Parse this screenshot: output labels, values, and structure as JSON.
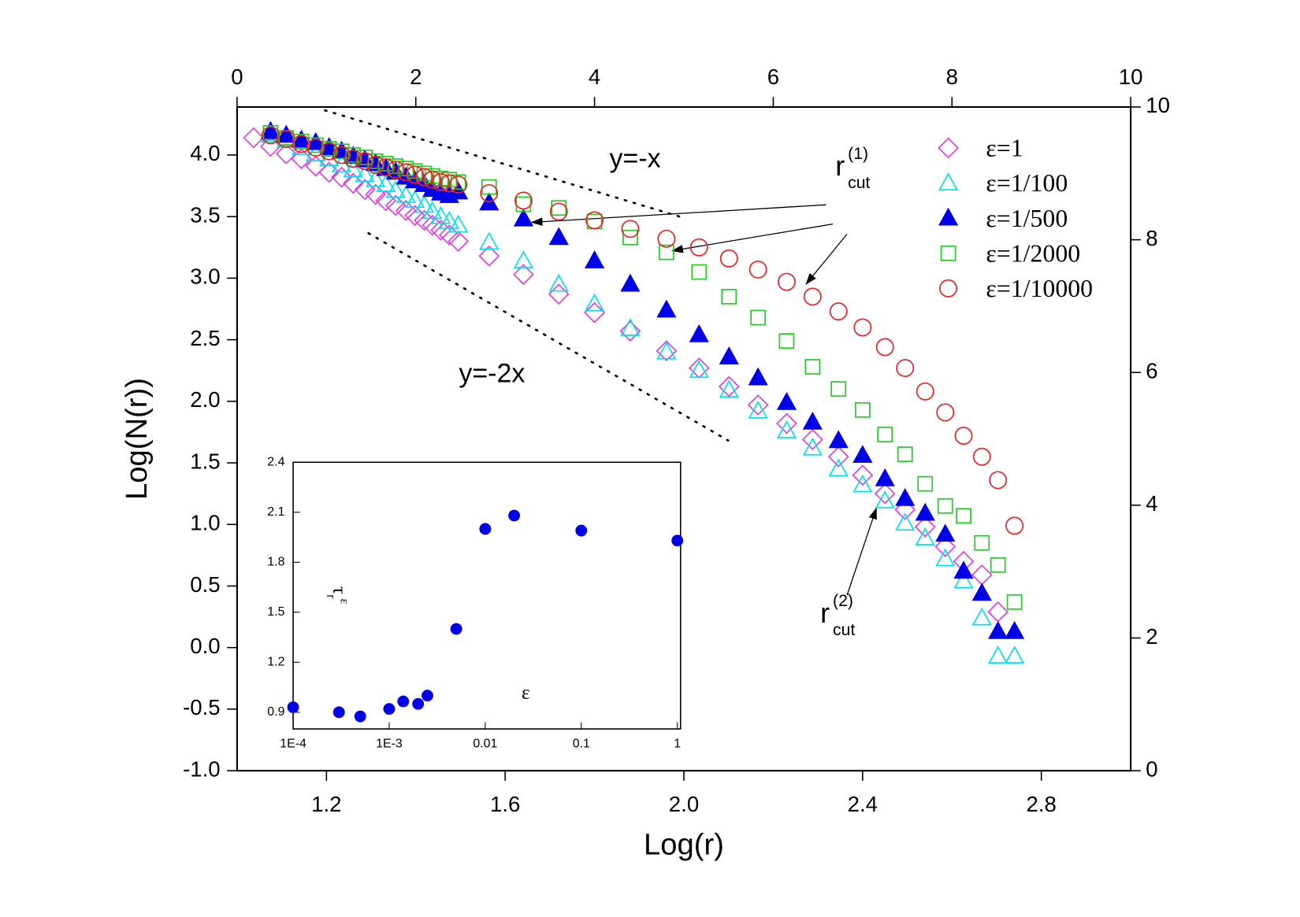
{
  "chart_data": [
    {
      "type": "scatter",
      "xlabel": "Log(r)",
      "ylabel": "Log(N(r))",
      "xlim": [
        1.0,
        3.0
      ],
      "xticks": [
        1.2,
        1.6,
        {
          "value": 2,
          "label": "2.0"
        },
        2.4,
        2.8
      ],
      "ylim": [
        -1.0,
        4.39
      ],
      "yticks": [
        {
          "value": -1,
          "label": "-1.0"
        },
        -0.5,
        {
          "value": 0,
          "label": "0.0"
        },
        0.5,
        {
          "value": 1,
          "label": "1.0"
        },
        1.5,
        {
          "value": 2,
          "label": "2.0"
        },
        2.5,
        {
          "value": 3,
          "label": "3.0"
        },
        3.5,
        {
          "value": 4,
          "label": "4.0"
        }
      ],
      "x2lim": [
        0,
        10
      ],
      "x2ticks": [
        0,
        2,
        4,
        6,
        8,
        10
      ],
      "y2lim": [
        0,
        10
      ],
      "y2ticks": [
        0,
        2,
        4,
        6,
        8,
        10
      ],
      "legend": "upper right",
      "x": [
        1.037,
        1.075,
        1.11,
        1.144,
        1.176,
        1.206,
        1.234,
        1.26,
        1.286,
        1.31,
        1.333,
        1.355,
        1.378,
        1.398,
        1.419,
        1.437,
        1.456,
        1.475,
        1.495,
        1.564,
        1.641,
        1.72,
        1.8,
        1.88,
        1.961,
        2.034,
        2.101,
        2.166,
        2.23,
        2.288,
        2.346,
        2.4,
        2.45,
        2.495,
        2.54,
        2.585,
        2.626,
        2.667,
        2.703,
        2.74
      ],
      "series": [
        {
          "name": "ε=1",
          "marker": "diamond",
          "filled": false,
          "color": "#e040e0",
          "values": [
            4.14,
            4.07,
            4.01,
            3.97,
            3.91,
            3.86,
            3.82,
            3.77,
            3.72,
            3.68,
            3.63,
            3.59,
            3.55,
            3.51,
            3.47,
            3.43,
            3.39,
            3.35,
            3.3,
            3.18,
            3.03,
            2.87,
            2.72,
            2.57,
            2.41,
            2.27,
            2.12,
            1.97,
            1.82,
            1.69,
            1.55,
            1.4,
            1.25,
            1.12,
            0.98,
            0.82,
            0.7,
            0.59,
            0.29,
            null
          ]
        },
        {
          "name": "ε=1/100",
          "marker": "triangle",
          "filled": false,
          "color": "#00e0ee",
          "values": [
            null,
            4.16,
            4.12,
            4.06,
            4.01,
            3.97,
            3.92,
            3.88,
            3.84,
            3.8,
            3.76,
            3.71,
            3.67,
            3.63,
            3.59,
            3.54,
            3.5,
            3.46,
            3.43,
            3.29,
            3.14,
            2.95,
            2.79,
            2.59,
            2.4,
            2.25,
            2.09,
            1.92,
            1.76,
            1.62,
            1.45,
            1.32,
            1.19,
            1.01,
            0.89,
            0.72,
            0.54,
            0.24,
            -0.07,
            -0.07
          ]
        },
        {
          "name": "ε=1/500",
          "marker": "triangle",
          "filled": true,
          "color": "#0000e8",
          "values": [
            null,
            4.19,
            4.16,
            4.12,
            4.1,
            4.06,
            4.03,
            3.99,
            3.96,
            3.93,
            3.89,
            3.86,
            3.82,
            3.79,
            3.76,
            3.72,
            3.69,
            3.67,
            3.7,
            3.61,
            3.48,
            3.33,
            3.14,
            2.95,
            2.74,
            2.54,
            2.36,
            2.19,
            1.99,
            1.83,
            1.68,
            1.56,
            1.37,
            1.21,
            1.09,
            0.92,
            0.62,
            0.44,
            0.13,
            0.13
          ]
        },
        {
          "name": "ε=1/2000",
          "marker": "square",
          "filled": false,
          "color": "#22cc22",
          "values": [
            null,
            4.18,
            4.14,
            4.11,
            4.08,
            4.05,
            4.03,
            4.0,
            3.98,
            3.95,
            3.93,
            3.91,
            3.89,
            3.87,
            3.85,
            3.83,
            3.81,
            3.8,
            3.78,
            3.74,
            3.6,
            3.57,
            3.46,
            3.33,
            3.21,
            3.05,
            2.85,
            2.68,
            2.49,
            2.28,
            2.1,
            1.93,
            1.73,
            1.57,
            1.33,
            1.15,
            1.07,
            0.85,
            0.67,
            0.37
          ]
        },
        {
          "name": "ε=1/10000",
          "marker": "circle",
          "filled": false,
          "color": "#ee2222",
          "values": [
            null,
            4.16,
            4.13,
            4.09,
            4.06,
            4.03,
            4.0,
            3.97,
            3.95,
            3.92,
            3.9,
            3.88,
            3.86,
            3.84,
            3.82,
            3.8,
            3.78,
            3.77,
            3.76,
            3.69,
            3.63,
            3.54,
            3.47,
            3.4,
            3.32,
            3.25,
            3.16,
            3.07,
            2.97,
            2.85,
            2.73,
            2.6,
            2.44,
            2.27,
            2.08,
            1.91,
            1.72,
            1.55,
            1.36,
            0.99
          ]
        }
      ],
      "annotations": [
        {
          "text": "y=-x"
        },
        {
          "text": "y=-2x"
        },
        {
          "base": "r",
          "sub": "cut",
          "sup": "(1)"
        },
        {
          "base": "r",
          "sub": "cut",
          "sup": "(2)"
        }
      ]
    },
    {
      "type": "scatter",
      "xscale": "log",
      "xlabel": "ε",
      "ylabel": {
        "base": "τ",
        "sub": "r",
        "sup": "ε"
      },
      "color": "#0000e8",
      "xlim": [
        0.0001,
        1.08
      ],
      "xticks": [
        {
          "value": 0.0001,
          "label": "1E-4"
        },
        {
          "value": 0.001,
          "label": "1E-3"
        },
        0.01,
        0.1,
        1
      ],
      "ylim": [
        0.8,
        2.4
      ],
      "yticks": [
        0.9,
        1.2,
        1.5,
        1.8,
        2.1,
        2.4
      ],
      "x": [
        0.0001,
        0.0003,
        0.0005,
        0.001,
        0.0014,
        0.002,
        0.0025,
        0.005,
        0.01,
        0.02,
        0.1,
        1
      ],
      "values": [
        0.93,
        0.9,
        0.875,
        0.92,
        0.965,
        0.95,
        1.0,
        1.4,
        2.0,
        2.08,
        1.99,
        1.93
      ]
    }
  ]
}
